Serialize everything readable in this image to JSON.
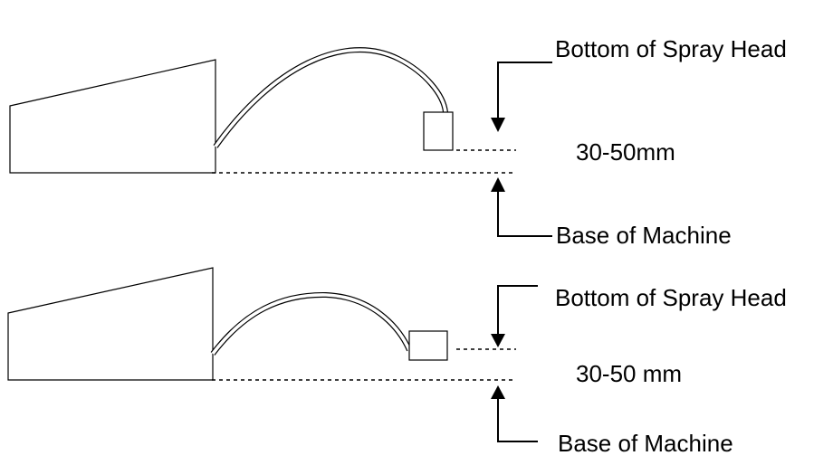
{
  "diagrams": [
    {
      "top_label": "Bottom of Spray Head",
      "gap_label": "30-50mm",
      "bottom_label": "Base of Machine"
    },
    {
      "top_label": "Bottom of Spray Head",
      "gap_label": "30-50 mm",
      "bottom_label": "Base of Machine"
    }
  ]
}
